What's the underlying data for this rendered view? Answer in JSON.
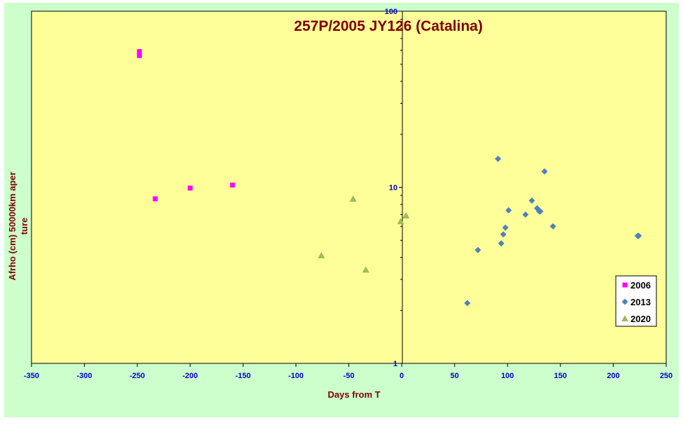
{
  "colors": {
    "chart_background": "#ccffcc",
    "plot_background": "#ffff99",
    "title": "#800000",
    "axis_title": "#800000",
    "tick_labels": "#0000cc",
    "series_2006": "#ff00ff",
    "series_2013": "#4f81bd",
    "series_2020": "#9bbb59"
  },
  "chart_data": {
    "type": "scatter",
    "title": "257P/2005 JY126 (Catalina)",
    "xlabel": "Days from  T",
    "ylabel": "Afrho (cm)  50000km aper ture",
    "xlim": [
      -350,
      250
    ],
    "ylim": [
      1,
      100
    ],
    "y_scale": "log",
    "x_ticks": [
      -350,
      -300,
      -250,
      -200,
      -150,
      -100,
      -50,
      0,
      50,
      100,
      150,
      200,
      250
    ],
    "y_ticks": [
      1,
      10,
      100
    ],
    "x_tick_labels": [
      "-350",
      "-300",
      "-250",
      "-200",
      "-150",
      "-100",
      "-50",
      "0",
      "50",
      "100",
      "150",
      "200",
      "250"
    ],
    "y_tick_labels": [
      "1",
      "10",
      "100"
    ],
    "grid": false,
    "legend_position": "right",
    "series": [
      {
        "name": "2006",
        "marker": "square",
        "points": [
          {
            "x": -248,
            "y": 59
          },
          {
            "x": -248,
            "y": 56
          },
          {
            "x": -233,
            "y": 8.6
          },
          {
            "x": -200,
            "y": 9.9
          },
          {
            "x": -160,
            "y": 10.3
          }
        ]
      },
      {
        "name": "2013",
        "marker": "diamond",
        "points": [
          {
            "x": 62,
            "y": 2.2
          },
          {
            "x": 72,
            "y": 4.4
          },
          {
            "x": 91,
            "y": 14.5
          },
          {
            "x": 94,
            "y": 4.8
          },
          {
            "x": 96,
            "y": 5.4
          },
          {
            "x": 98,
            "y": 5.9
          },
          {
            "x": 101,
            "y": 7.4
          },
          {
            "x": 117,
            "y": 7.0
          },
          {
            "x": 123,
            "y": 8.4
          },
          {
            "x": 128,
            "y": 7.6
          },
          {
            "x": 130,
            "y": 7.3
          },
          {
            "x": 131,
            "y": 7.3
          },
          {
            "x": 135,
            "y": 12.3
          },
          {
            "x": 143,
            "y": 6.0
          },
          {
            "x": 223,
            "y": 5.3
          },
          {
            "x": 224,
            "y": 5.3
          }
        ]
      },
      {
        "name": "2020",
        "marker": "triangle",
        "points": [
          {
            "x": -76,
            "y": 4.1
          },
          {
            "x": -46,
            "y": 8.6
          },
          {
            "x": -34,
            "y": 3.4
          },
          {
            "x": -1,
            "y": 6.4
          },
          {
            "x": 4,
            "y": 6.9
          }
        ]
      }
    ]
  }
}
